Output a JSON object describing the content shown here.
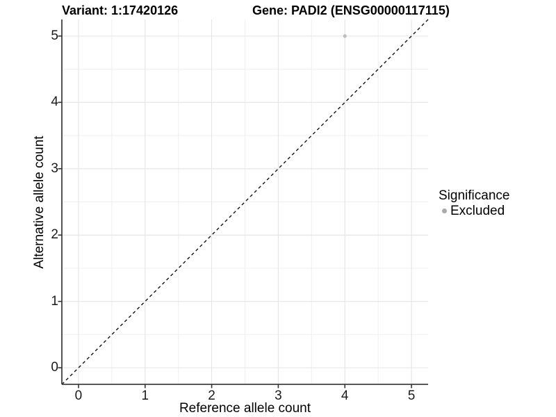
{
  "chart_data": {
    "type": "scatter",
    "title_left": "Variant: 1:17420126",
    "title_right": "Gene: PADI2 (ENSG00000117115)",
    "xlabel": "Reference allele count",
    "ylabel": "Alternative allele count",
    "x_ticks": [
      0,
      1,
      2,
      3,
      4,
      5
    ],
    "y_ticks": [
      0,
      1,
      2,
      3,
      4,
      5
    ],
    "xlim": [
      -0.25,
      5.25
    ],
    "ylim": [
      -0.25,
      5.25
    ],
    "grid": {
      "major_step": 1,
      "minor_step": 0.5,
      "enabled": true
    },
    "points": [
      {
        "x": 4,
        "y": 5,
        "series": "Excluded",
        "color": "#bdbdbd",
        "radius": 2.6
      }
    ],
    "identity_line": {
      "style": "dashed",
      "from": [
        -0.25,
        -0.25
      ],
      "to": [
        5.25,
        5.25
      ],
      "color": "#111111"
    },
    "legend": {
      "title": "Significance",
      "position": "right",
      "items": [
        {
          "label": "Excluded",
          "color": "#aaaaaa",
          "marker": "circle"
        }
      ]
    },
    "colors": {
      "gridline_major": "#e4e4e4",
      "gridline_minor": "#efefef",
      "axis_line": "#404040",
      "tick_mark": "#333333",
      "background": "#ffffff"
    }
  }
}
